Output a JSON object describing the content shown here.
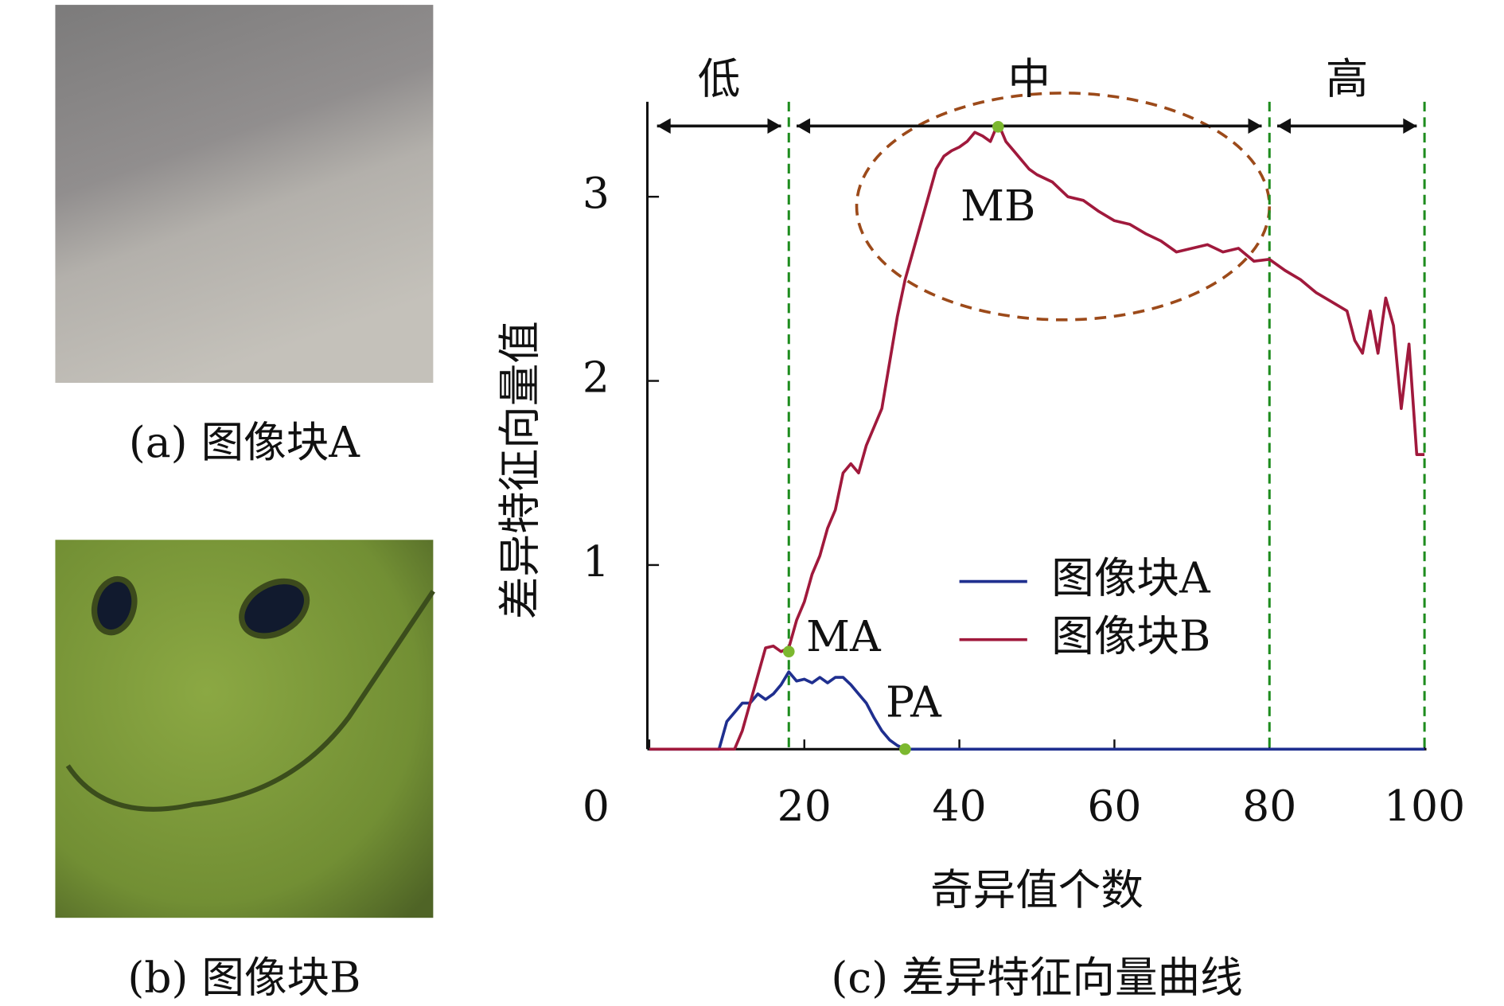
{
  "panels": [
    {
      "caption": "(a) 图像块A"
    },
    {
      "caption": "(b) 图像块B"
    }
  ],
  "chart_data": {
    "type": "line",
    "caption": "(c) 差异特征向量曲线",
    "x_label": "奇异值个数",
    "y_label": "差异特征向量值",
    "xlim": [
      0,
      100
    ],
    "ylim": [
      0,
      3.5
    ],
    "xticks": [
      0,
      20,
      40,
      60,
      80,
      100
    ],
    "yticks": [
      1,
      2,
      3
    ],
    "legend": "lower right",
    "series": [
      {
        "name": "图像块A",
        "color": "#1f2f8f",
        "x": [
          0,
          9,
          10,
          11,
          12,
          13,
          14,
          15,
          16,
          17,
          18,
          19,
          20,
          21,
          22,
          23,
          24,
          25,
          26,
          27,
          28,
          29,
          30,
          31,
          32,
          33,
          100
        ],
        "values": [
          0,
          0,
          0.15,
          0.2,
          0.25,
          0.25,
          0.3,
          0.27,
          0.3,
          0.35,
          0.42,
          0.37,
          0.38,
          0.36,
          0.39,
          0.36,
          0.39,
          0.39,
          0.35,
          0.3,
          0.25,
          0.17,
          0.1,
          0.05,
          0.02,
          0,
          0
        ]
      },
      {
        "name": "图像块B",
        "color": "#a0193c",
        "x": [
          0,
          11,
          12,
          13,
          14,
          15,
          16,
          17,
          18,
          19,
          20,
          21,
          22,
          23,
          24,
          25,
          26,
          27,
          28,
          29,
          30,
          31,
          32,
          33,
          34,
          35,
          36,
          37,
          38,
          39,
          40,
          41,
          42,
          43,
          44,
          45,
          46,
          47,
          48,
          49,
          50,
          52,
          54,
          56,
          58,
          60,
          62,
          64,
          66,
          68,
          70,
          72,
          74,
          76,
          78,
          80,
          82,
          84,
          86,
          88,
          90,
          91,
          92,
          93,
          94,
          95,
          96,
          97,
          98,
          99,
          100
        ],
        "values": [
          0,
          0,
          0.1,
          0.25,
          0.4,
          0.55,
          0.56,
          0.53,
          0.55,
          0.7,
          0.8,
          0.95,
          1.05,
          1.2,
          1.3,
          1.5,
          1.55,
          1.5,
          1.65,
          1.75,
          1.85,
          2.1,
          2.35,
          2.55,
          2.7,
          2.85,
          3.0,
          3.15,
          3.22,
          3.25,
          3.27,
          3.3,
          3.35,
          3.33,
          3.3,
          3.4,
          3.3,
          3.25,
          3.2,
          3.15,
          3.12,
          3.08,
          3.0,
          2.98,
          2.92,
          2.87,
          2.85,
          2.8,
          2.76,
          2.7,
          2.72,
          2.74,
          2.7,
          2.72,
          2.65,
          2.66,
          2.6,
          2.55,
          2.48,
          2.43,
          2.38,
          2.22,
          2.15,
          2.38,
          2.15,
          2.45,
          2.3,
          1.85,
          2.2,
          1.6,
          1.6
        ]
      }
    ],
    "vlines": [
      18,
      80,
      100
    ],
    "vline_color": "#1e8c1e",
    "regions": [
      {
        "label": "低",
        "from": 0,
        "to": 18
      },
      {
        "label": "中",
        "from": 18,
        "to": 80
      },
      {
        "label": "高",
        "from": 80,
        "to": 100
      }
    ],
    "region_label_color": "#a0193c",
    "points": [
      {
        "label": "MA",
        "x": 18,
        "y": 0.53
      },
      {
        "label": "MB",
        "x": 45,
        "y": 3.38
      },
      {
        "label": "PA",
        "x": 33,
        "y": 0
      }
    ],
    "point_color": "#7cb82f"
  }
}
